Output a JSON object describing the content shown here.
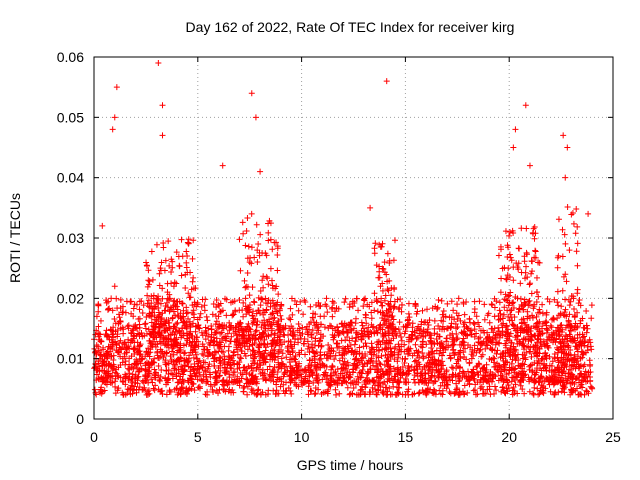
{
  "chart_data": {
    "type": "scatter",
    "title": "Day 162 of 2022, Rate Of TEC Index for receiver kirg",
    "xlabel": "GPS time / hours",
    "ylabel": "ROTI / TECUs",
    "xlim": [
      0,
      25
    ],
    "ylim": [
      0,
      0.06
    ],
    "x_ticks": [
      "0",
      "5",
      "10",
      "15",
      "20",
      "25"
    ],
    "y_ticks": [
      "0",
      "0.01",
      "0.02",
      "0.03",
      "0.04",
      "0.05",
      "0.06"
    ],
    "grid": true,
    "legend": "none",
    "marker": "plus",
    "color": "#ff0000",
    "series": [
      {
        "x": [
          0.1,
          0.3,
          0.5,
          0.7,
          0.9,
          1.0,
          1.2,
          1.5,
          1.8,
          2.0,
          2.3,
          2.5,
          2.8,
          3.0,
          3.2,
          3.4,
          3.5,
          3.7,
          4.0,
          4.3,
          4.5,
          4.8,
          5.0,
          5.3,
          5.5,
          5.8,
          6.0,
          6.3,
          6.5,
          6.8,
          7.0,
          7.3,
          7.5,
          7.7,
          7.9,
          8.1,
          8.3,
          8.6,
          8.9,
          9.2,
          9.5,
          9.8,
          10.0,
          10.3,
          10.6,
          10.9,
          11.2,
          11.5,
          11.8,
          12.0,
          12.3,
          12.6,
          12.9,
          13.2,
          13.5,
          13.8,
          14.0,
          14.2,
          14.5,
          14.8,
          15.0,
          15.3,
          15.6,
          15.9,
          16.2,
          16.5,
          16.8,
          17.0,
          17.3,
          17.6,
          17.9,
          18.2,
          18.5,
          18.8,
          19.0,
          19.3,
          19.6,
          19.9,
          20.2,
          20.4,
          20.6,
          20.9,
          21.2,
          21.5,
          21.8,
          22.2,
          22.5,
          22.7,
          22.9,
          23.1,
          23.4,
          23.7,
          23.9,
          0.4,
          1.1,
          3.1,
          3.3,
          7.6,
          7.8,
          14.1,
          20.3,
          20.8,
          22.6,
          22.8,
          0.9,
          1.0,
          3.3,
          6.2,
          8.0,
          13.3,
          20.2,
          21.0,
          22.7,
          23.8
        ],
        "y": [
          0.01,
          0.014,
          0.008,
          0.012,
          0.018,
          0.022,
          0.011,
          0.009,
          0.013,
          0.006,
          0.01,
          0.015,
          0.012,
          0.02,
          0.025,
          0.018,
          0.009,
          0.014,
          0.011,
          0.016,
          0.013,
          0.008,
          0.019,
          0.012,
          0.015,
          0.01,
          0.017,
          0.009,
          0.012,
          0.018,
          0.014,
          0.02,
          0.026,
          0.016,
          0.011,
          0.023,
          0.018,
          0.013,
          0.009,
          0.015,
          0.012,
          0.008,
          0.006,
          0.014,
          0.011,
          0.017,
          0.02,
          0.015,
          0.012,
          0.009,
          0.013,
          0.01,
          0.016,
          0.014,
          0.018,
          0.022,
          0.026,
          0.019,
          0.015,
          0.012,
          0.01,
          0.014,
          0.011,
          0.016,
          0.013,
          0.009,
          0.012,
          0.015,
          0.018,
          0.011,
          0.014,
          0.01,
          0.016,
          0.019,
          0.013,
          0.017,
          0.021,
          0.018,
          0.023,
          0.02,
          0.015,
          0.017,
          0.019,
          0.014,
          0.01,
          0.008,
          0.012,
          0.024,
          0.028,
          0.02,
          0.014,
          0.011,
          0.009,
          0.032,
          0.055,
          0.059,
          0.052,
          0.054,
          0.05,
          0.056,
          0.048,
          0.052,
          0.047,
          0.045,
          0.048,
          0.05,
          0.047,
          0.042,
          0.041,
          0.035,
          0.045,
          0.042,
          0.04,
          0.034
        ],
        "dense_bands": [
          {
            "x": [
              0.0,
              24.0
            ],
            "y": [
              0.004,
              0.016
            ]
          },
          {
            "x": [
              0.0,
              24.0
            ],
            "y": [
              0.006,
              0.02
            ]
          },
          {
            "x": [
              2.5,
              5.0
            ],
            "y": [
              0.012,
              0.03
            ]
          },
          {
            "x": [
              7.0,
              9.0
            ],
            "y": [
              0.01,
              0.034
            ]
          },
          {
            "x": [
              13.5,
              14.5
            ],
            "y": [
              0.01,
              0.03
            ]
          },
          {
            "x": [
              19.5,
              21.5
            ],
            "y": [
              0.01,
              0.032
            ]
          },
          {
            "x": [
              22.3,
              23.3
            ],
            "y": [
              0.006,
              0.036
            ]
          }
        ]
      }
    ]
  }
}
